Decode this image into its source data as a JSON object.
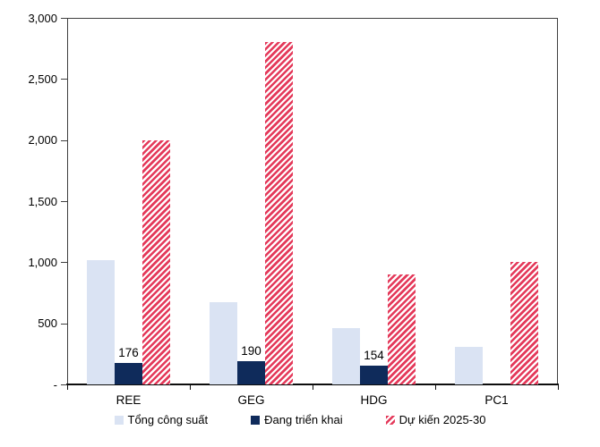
{
  "chart_data": {
    "type": "bar",
    "title": "",
    "xlabel": "",
    "ylabel": "",
    "categories": [
      "REE",
      "GEG",
      "HDG",
      "PC1"
    ],
    "series": [
      {
        "name": "Tổng công suất",
        "color": "#dae3f3",
        "hatch": false,
        "values": [
          1020,
          670,
          460,
          310
        ]
      },
      {
        "name": "Đang triển khai",
        "color": "#0f2b5b",
        "hatch": false,
        "values": [
          176,
          190,
          154,
          null
        ],
        "data_labels": [
          "176",
          "190",
          "154",
          null
        ]
      },
      {
        "name": "Dự kiến 2025-30",
        "color": "#e4395a",
        "hatch": true,
        "values": [
          2000,
          2800,
          900,
          1000
        ]
      }
    ],
    "ylim": [
      0,
      3000
    ],
    "yticks": [
      0,
      500,
      1000,
      1500,
      2000,
      2500,
      3000
    ],
    "ytick_labels": [
      "-",
      "500",
      "1,000",
      "1,500",
      "2,000",
      "2,500",
      "3,000"
    ],
    "grid": false,
    "legend_position": "bottom",
    "axis_color": "#3f3f3f",
    "text_color": "#000000"
  }
}
